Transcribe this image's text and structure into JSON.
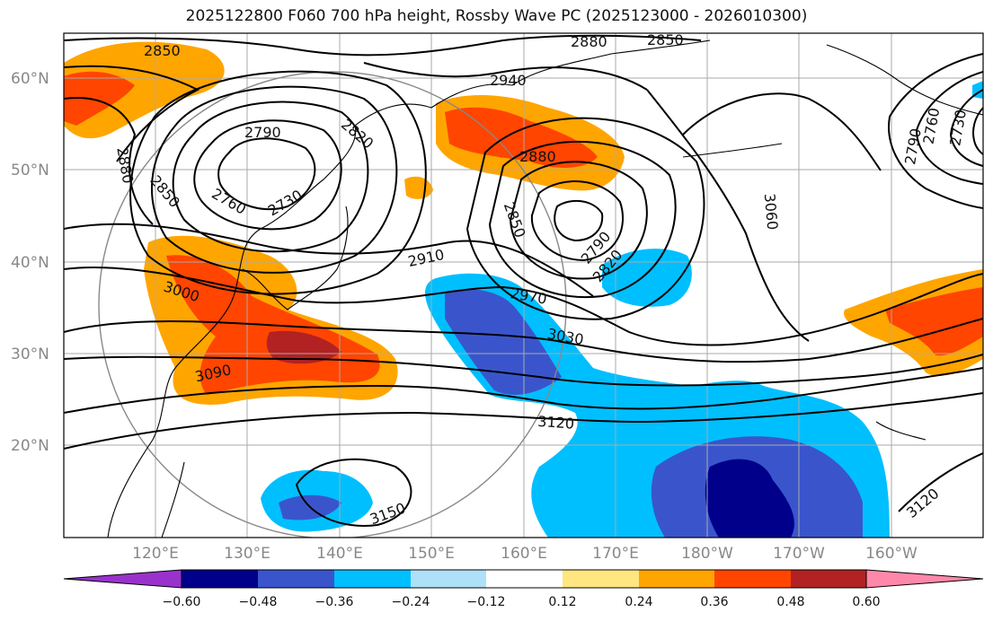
{
  "title": "2025122800 F060 700 hPa height, Rossby Wave PC (2025123000 - 2026010300)",
  "lat_labels": [
    "60°N",
    "50°N",
    "40°N",
    "30°N",
    "20°N"
  ],
  "lon_labels": [
    "120°E",
    "130°E",
    "140°E",
    "150°E",
    "160°E",
    "170°E",
    "180°W",
    "170°W",
    "160°W"
  ],
  "contour_labels": [
    "2850",
    "2880",
    "2850",
    "2940",
    "2880",
    "2790",
    "2820",
    "2880",
    "2760",
    "2730",
    "2850",
    "2910",
    "2850",
    "2790",
    "2820",
    "3000",
    "2970",
    "3030",
    "3090",
    "3060",
    "3120",
    "3150",
    "3120",
    "2730",
    "2760",
    "2790"
  ],
  "colorbar_ticks": [
    "−0.60",
    "−0.48",
    "−0.36",
    "−0.24",
    "−0.12",
    "0.12",
    "0.24",
    "0.36",
    "0.48",
    "0.60"
  ],
  "colorbar_colors": [
    "#9932cc",
    "#00008b",
    "#3a55cc",
    "#00bfff",
    "#aee0f8",
    "#ffffff",
    "#ffe680",
    "#ffa500",
    "#ff4500",
    "#b22222",
    "#ff88aa"
  ]
}
